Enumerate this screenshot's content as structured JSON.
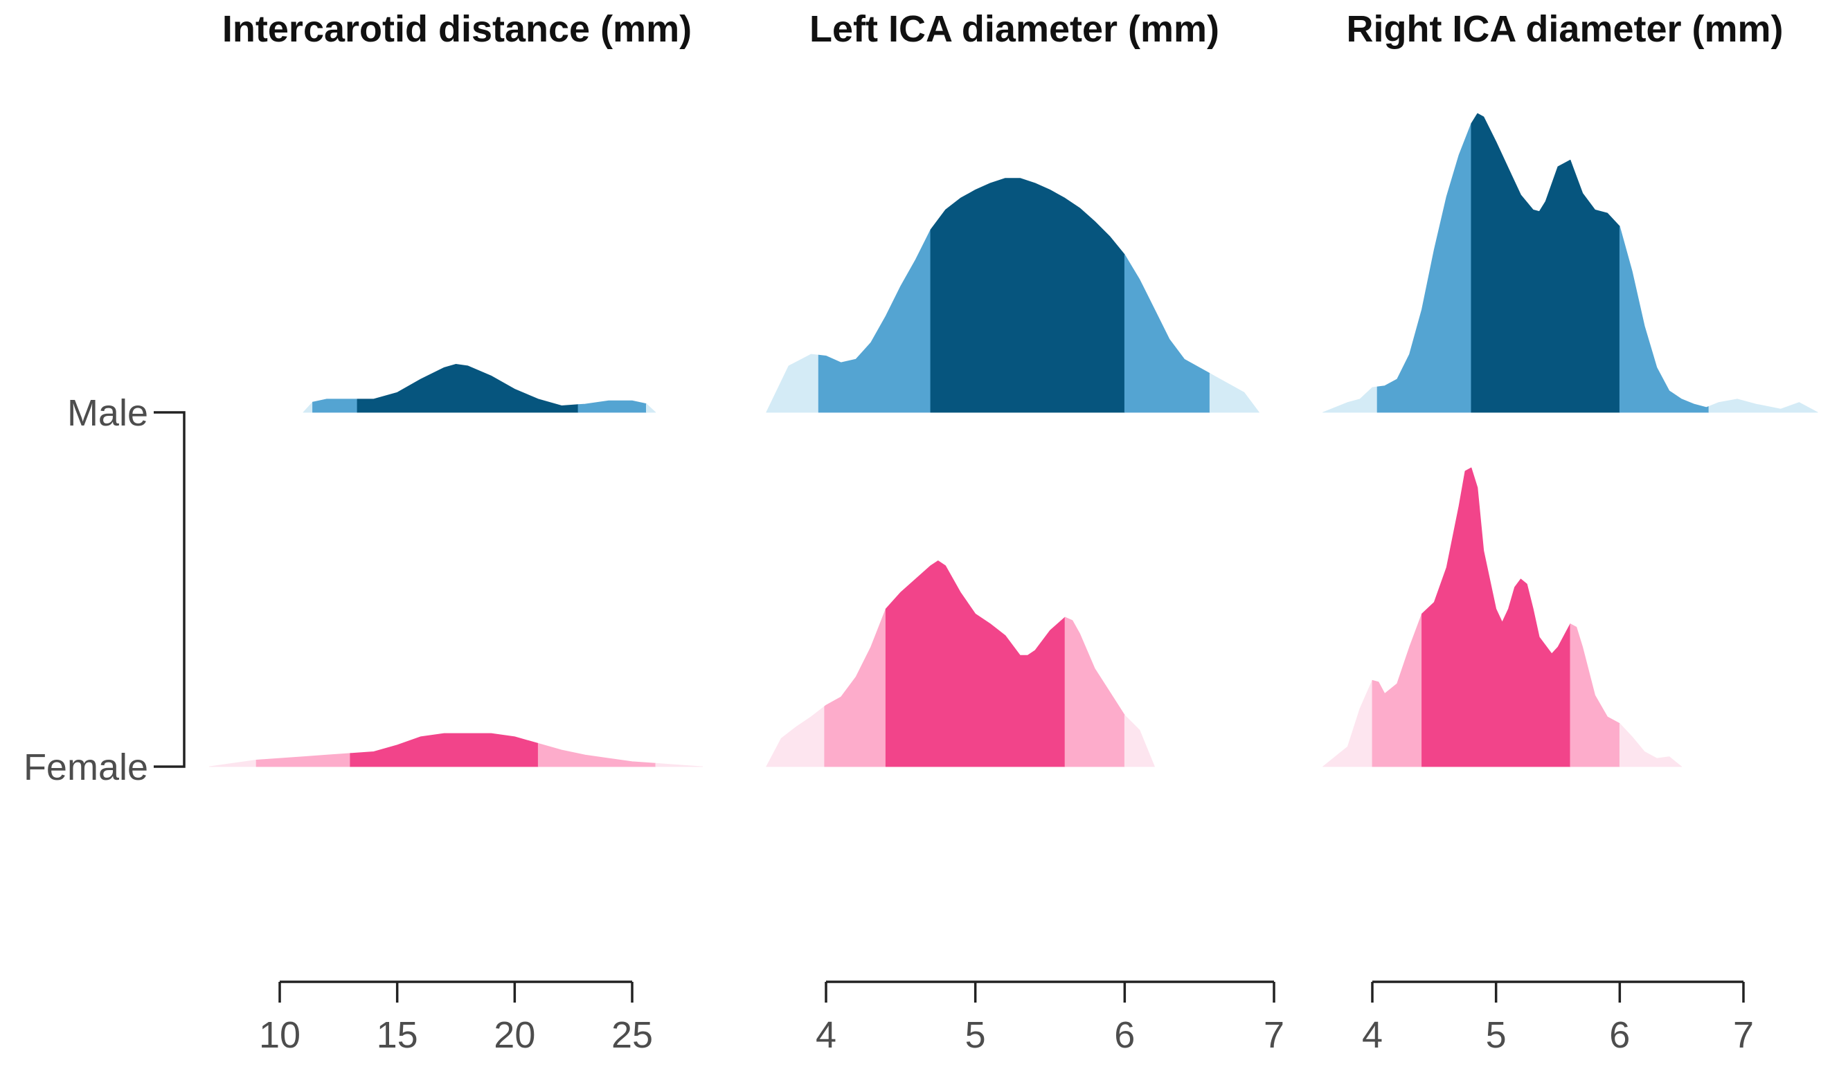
{
  "chart_data": {
    "type": "ridgeline",
    "groups": [
      "Male",
      "Female"
    ],
    "panels": [
      {
        "title": "Intercarotid distance (mm)",
        "xlim": [
          10,
          25
        ],
        "ticks": [
          10,
          15,
          20,
          25
        ],
        "series": [
          {
            "group": "Male",
            "bands": [
              11,
              11.4,
              13.3,
              22.7,
              25.6,
              26
            ],
            "density": [
              [
                11,
                0
              ],
              [
                11,
                0.05
              ],
              [
                12,
                0.08
              ],
              [
                13,
                0.08
              ],
              [
                14,
                0.08
              ],
              [
                15,
                0.12
              ],
              [
                16,
                0.2
              ],
              [
                17,
                0.27
              ],
              [
                17.5,
                0.29
              ],
              [
                18,
                0.28
              ],
              [
                19,
                0.22
              ],
              [
                20,
                0.14
              ],
              [
                21,
                0.08
              ],
              [
                22,
                0.04
              ],
              [
                23,
                0.05
              ],
              [
                24,
                0.07
              ],
              [
                25,
                0.07
              ],
              [
                26,
                0.04
              ],
              [
                26,
                0
              ]
            ]
          },
          {
            "group": "Female",
            "bands": [
              7,
              9,
              13,
              21,
              26,
              28
            ],
            "density": [
              [
                7,
                0
              ],
              [
                8,
                0.02
              ],
              [
                9,
                0.04
              ],
              [
                10,
                0.05
              ],
              [
                11,
                0.06
              ],
              [
                12,
                0.07
              ],
              [
                13,
                0.08
              ],
              [
                14,
                0.09
              ],
              [
                15,
                0.13
              ],
              [
                16,
                0.18
              ],
              [
                17,
                0.2
              ],
              [
                18,
                0.2
              ],
              [
                19,
                0.2
              ],
              [
                20,
                0.18
              ],
              [
                21,
                0.14
              ],
              [
                22,
                0.1
              ],
              [
                23,
                0.07
              ],
              [
                24,
                0.05
              ],
              [
                25,
                0.03
              ],
              [
                26,
                0.02
              ],
              [
                27,
                0.01
              ],
              [
                28,
                0
              ]
            ]
          }
        ]
      },
      {
        "title": "Left ICA diameter (mm)",
        "xlim": [
          4,
          7
        ],
        "ticks": [
          4,
          5,
          6,
          7
        ],
        "series": [
          {
            "group": "Male",
            "bands": [
              3.6,
              3.95,
              4.7,
              6.0,
              6.57,
              6.9
            ],
            "density": [
              [
                3.6,
                0
              ],
              [
                3.6,
                0.2
              ],
              [
                3.75,
                0.28
              ],
              [
                3.9,
                0.35
              ],
              [
                4.0,
                0.34
              ],
              [
                4.1,
                0.3
              ],
              [
                4.2,
                0.32
              ],
              [
                4.3,
                0.42
              ],
              [
                4.4,
                0.58
              ],
              [
                4.5,
                0.76
              ],
              [
                4.6,
                0.92
              ],
              [
                4.7,
                1.1
              ],
              [
                4.8,
                1.22
              ],
              [
                4.9,
                1.29
              ],
              [
                5.0,
                1.34
              ],
              [
                5.1,
                1.38
              ],
              [
                5.2,
                1.41
              ],
              [
                5.3,
                1.41
              ],
              [
                5.4,
                1.38
              ],
              [
                5.5,
                1.34
              ],
              [
                5.6,
                1.29
              ],
              [
                5.7,
                1.23
              ],
              [
                5.8,
                1.15
              ],
              [
                5.9,
                1.06
              ],
              [
                6.0,
                0.95
              ],
              [
                6.1,
                0.8
              ],
              [
                6.2,
                0.62
              ],
              [
                6.3,
                0.44
              ],
              [
                6.4,
                0.32
              ],
              [
                6.5,
                0.27
              ],
              [
                6.6,
                0.22
              ],
              [
                6.7,
                0.17
              ],
              [
                6.8,
                0.12
              ],
              [
                6.9,
                0.07
              ],
              [
                6.9,
                0
              ]
            ]
          },
          {
            "group": "Female",
            "bands": [
              3.6,
              3.99,
              4.4,
              5.6,
              6.0,
              6.2
            ],
            "density": [
              [
                3.6,
                0
              ],
              [
                3.6,
                0.1
              ],
              [
                3.7,
                0.17
              ],
              [
                3.8,
                0.24
              ],
              [
                3.9,
                0.3
              ],
              [
                4.0,
                0.37
              ],
              [
                4.1,
                0.42
              ],
              [
                4.2,
                0.54
              ],
              [
                4.3,
                0.72
              ],
              [
                4.4,
                0.95
              ],
              [
                4.5,
                1.05
              ],
              [
                4.6,
                1.13
              ],
              [
                4.7,
                1.21
              ],
              [
                4.75,
                1.24
              ],
              [
                4.8,
                1.21
              ],
              [
                4.9,
                1.05
              ],
              [
                5.0,
                0.92
              ],
              [
                5.1,
                0.86
              ],
              [
                5.2,
                0.79
              ],
              [
                5.3,
                0.67
              ],
              [
                5.35,
                0.67
              ],
              [
                5.4,
                0.7
              ],
              [
                5.5,
                0.82
              ],
              [
                5.6,
                0.9
              ],
              [
                5.65,
                0.88
              ],
              [
                5.7,
                0.8
              ],
              [
                5.8,
                0.59
              ],
              [
                5.9,
                0.45
              ],
              [
                6.0,
                0.31
              ],
              [
                6.1,
                0.22
              ],
              [
                6.2,
                0.16
              ],
              [
                6.2,
                0
              ]
            ]
          }
        ]
      },
      {
        "title": "Right ICA diameter (mm)",
        "xlim": [
          4,
          7
        ],
        "ticks": [
          4,
          5,
          6,
          7
        ],
        "series": [
          {
            "group": "Male",
            "bands": [
              3.6,
              4.04,
              4.8,
              6.0,
              6.72,
              7.6
            ],
            "density": [
              [
                3.6,
                0
              ],
              [
                3.6,
                0.04
              ],
              [
                3.8,
                0.06
              ],
              [
                3.9,
                0.08
              ],
              [
                4.0,
                0.15
              ],
              [
                4.1,
                0.16
              ],
              [
                4.2,
                0.2
              ],
              [
                4.3,
                0.35
              ],
              [
                4.4,
                0.62
              ],
              [
                4.5,
                0.98
              ],
              [
                4.6,
                1.3
              ],
              [
                4.7,
                1.55
              ],
              [
                4.8,
                1.74
              ],
              [
                4.85,
                1.8
              ],
              [
                4.9,
                1.78
              ],
              [
                5.0,
                1.63
              ],
              [
                5.1,
                1.47
              ],
              [
                5.2,
                1.31
              ],
              [
                5.3,
                1.22
              ],
              [
                5.35,
                1.21
              ],
              [
                5.4,
                1.27
              ],
              [
                5.5,
                1.48
              ],
              [
                5.6,
                1.52
              ],
              [
                5.7,
                1.32
              ],
              [
                5.8,
                1.22
              ],
              [
                5.9,
                1.2
              ],
              [
                6.0,
                1.12
              ],
              [
                6.1,
                0.85
              ],
              [
                6.2,
                0.52
              ],
              [
                6.3,
                0.27
              ],
              [
                6.4,
                0.13
              ],
              [
                6.5,
                0.08
              ],
              [
                6.6,
                0.05
              ],
              [
                6.7,
                0.03
              ],
              [
                6.8,
                0.06
              ],
              [
                6.95,
                0.08
              ],
              [
                7.1,
                0.05
              ],
              [
                7.3,
                0.02
              ],
              [
                7.45,
                0.06
              ],
              [
                7.6,
                0.11
              ],
              [
                7.6,
                0
              ]
            ]
          },
          {
            "group": "Female",
            "bands": [
              3.6,
              4.0,
              4.4,
              5.6,
              6.0,
              6.5
            ],
            "density": [
              [
                3.6,
                0
              ],
              [
                3.6,
                0.04
              ],
              [
                3.8,
                0.12
              ],
              [
                3.9,
                0.35
              ],
              [
                4.0,
                0.52
              ],
              [
                4.05,
                0.51
              ],
              [
                4.1,
                0.44
              ],
              [
                4.2,
                0.5
              ],
              [
                4.3,
                0.72
              ],
              [
                4.4,
                0.92
              ],
              [
                4.5,
                0.99
              ],
              [
                4.6,
                1.2
              ],
              [
                4.7,
                1.57
              ],
              [
                4.75,
                1.78
              ],
              [
                4.8,
                1.8
              ],
              [
                4.85,
                1.68
              ],
              [
                4.9,
                1.3
              ],
              [
                5.0,
                0.95
              ],
              [
                5.05,
                0.87
              ],
              [
                5.1,
                0.95
              ],
              [
                5.15,
                1.08
              ],
              [
                5.2,
                1.13
              ],
              [
                5.25,
                1.1
              ],
              [
                5.3,
                0.95
              ],
              [
                5.35,
                0.78
              ],
              [
                5.45,
                0.68
              ],
              [
                5.5,
                0.72
              ],
              [
                5.6,
                0.86
              ],
              [
                5.65,
                0.84
              ],
              [
                5.7,
                0.72
              ],
              [
                5.8,
                0.43
              ],
              [
                5.9,
                0.3
              ],
              [
                6.0,
                0.26
              ],
              [
                6.1,
                0.18
              ],
              [
                6.2,
                0.09
              ],
              [
                6.3,
                0.05
              ],
              [
                6.4,
                0.06
              ],
              [
                6.5,
                0.09
              ],
              [
                6.5,
                0
              ]
            ]
          }
        ]
      }
    ],
    "palette": {
      "Male": [
        "#d4ebf6",
        "#54a4d2",
        "#06557e"
      ],
      "Female": [
        "#fde5ef",
        "#fdaccb",
        "#f2448a"
      ]
    },
    "grid": false,
    "legend": "none"
  }
}
